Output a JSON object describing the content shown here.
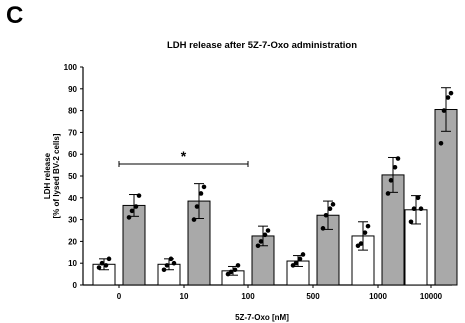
{
  "panel_letter": "C",
  "chart_data": {
    "type": "bar",
    "title": "LDH release after 5Z-7-Oxo administration",
    "xlabel": "5Z-7-Oxo [nM]",
    "ylabel": [
      "LDH release",
      "[% of lysed BV-2 cells]"
    ],
    "ylim": [
      0,
      100
    ],
    "yticks": [
      0,
      10,
      20,
      30,
      40,
      50,
      60,
      70,
      80,
      90,
      100
    ],
    "categories": [
      "0",
      "10",
      "100",
      "500",
      "1000",
      "10000"
    ],
    "series": [
      {
        "fill": "#ffffff",
        "values": [
          9.5,
          9.5,
          6.5,
          11,
          22.5,
          34.5
        ],
        "errors": [
          2.5,
          2.5,
          2,
          2.5,
          6.5,
          6.5
        ],
        "points": [
          [
            8,
            10,
            9,
            12
          ],
          [
            7,
            9,
            12,
            10
          ],
          [
            5,
            6,
            7,
            9
          ],
          [
            9,
            10,
            12,
            14
          ],
          [
            18,
            19,
            24,
            27
          ],
          [
            29,
            35,
            40,
            35
          ]
        ]
      },
      {
        "fill": "#a9a9a9",
        "values": [
          36.5,
          38.5,
          22.5,
          32,
          50.5,
          80.5
        ],
        "errors": [
          5,
          8,
          4.5,
          6.5,
          8,
          10
        ],
        "points": [
          [
            31,
            34,
            36,
            41
          ],
          [
            30,
            36,
            42,
            45
          ],
          [
            18,
            20,
            23,
            25
          ],
          [
            26,
            32,
            35,
            37
          ],
          [
            42,
            48,
            54,
            58
          ],
          [
            65,
            80,
            86,
            88
          ]
        ]
      }
    ],
    "significance": [
      {
        "from": "0",
        "to": "100",
        "y": 55.5,
        "label": "*"
      }
    ],
    "colors": {
      "bar_stroke": "#000000",
      "point": "#000000"
    }
  }
}
